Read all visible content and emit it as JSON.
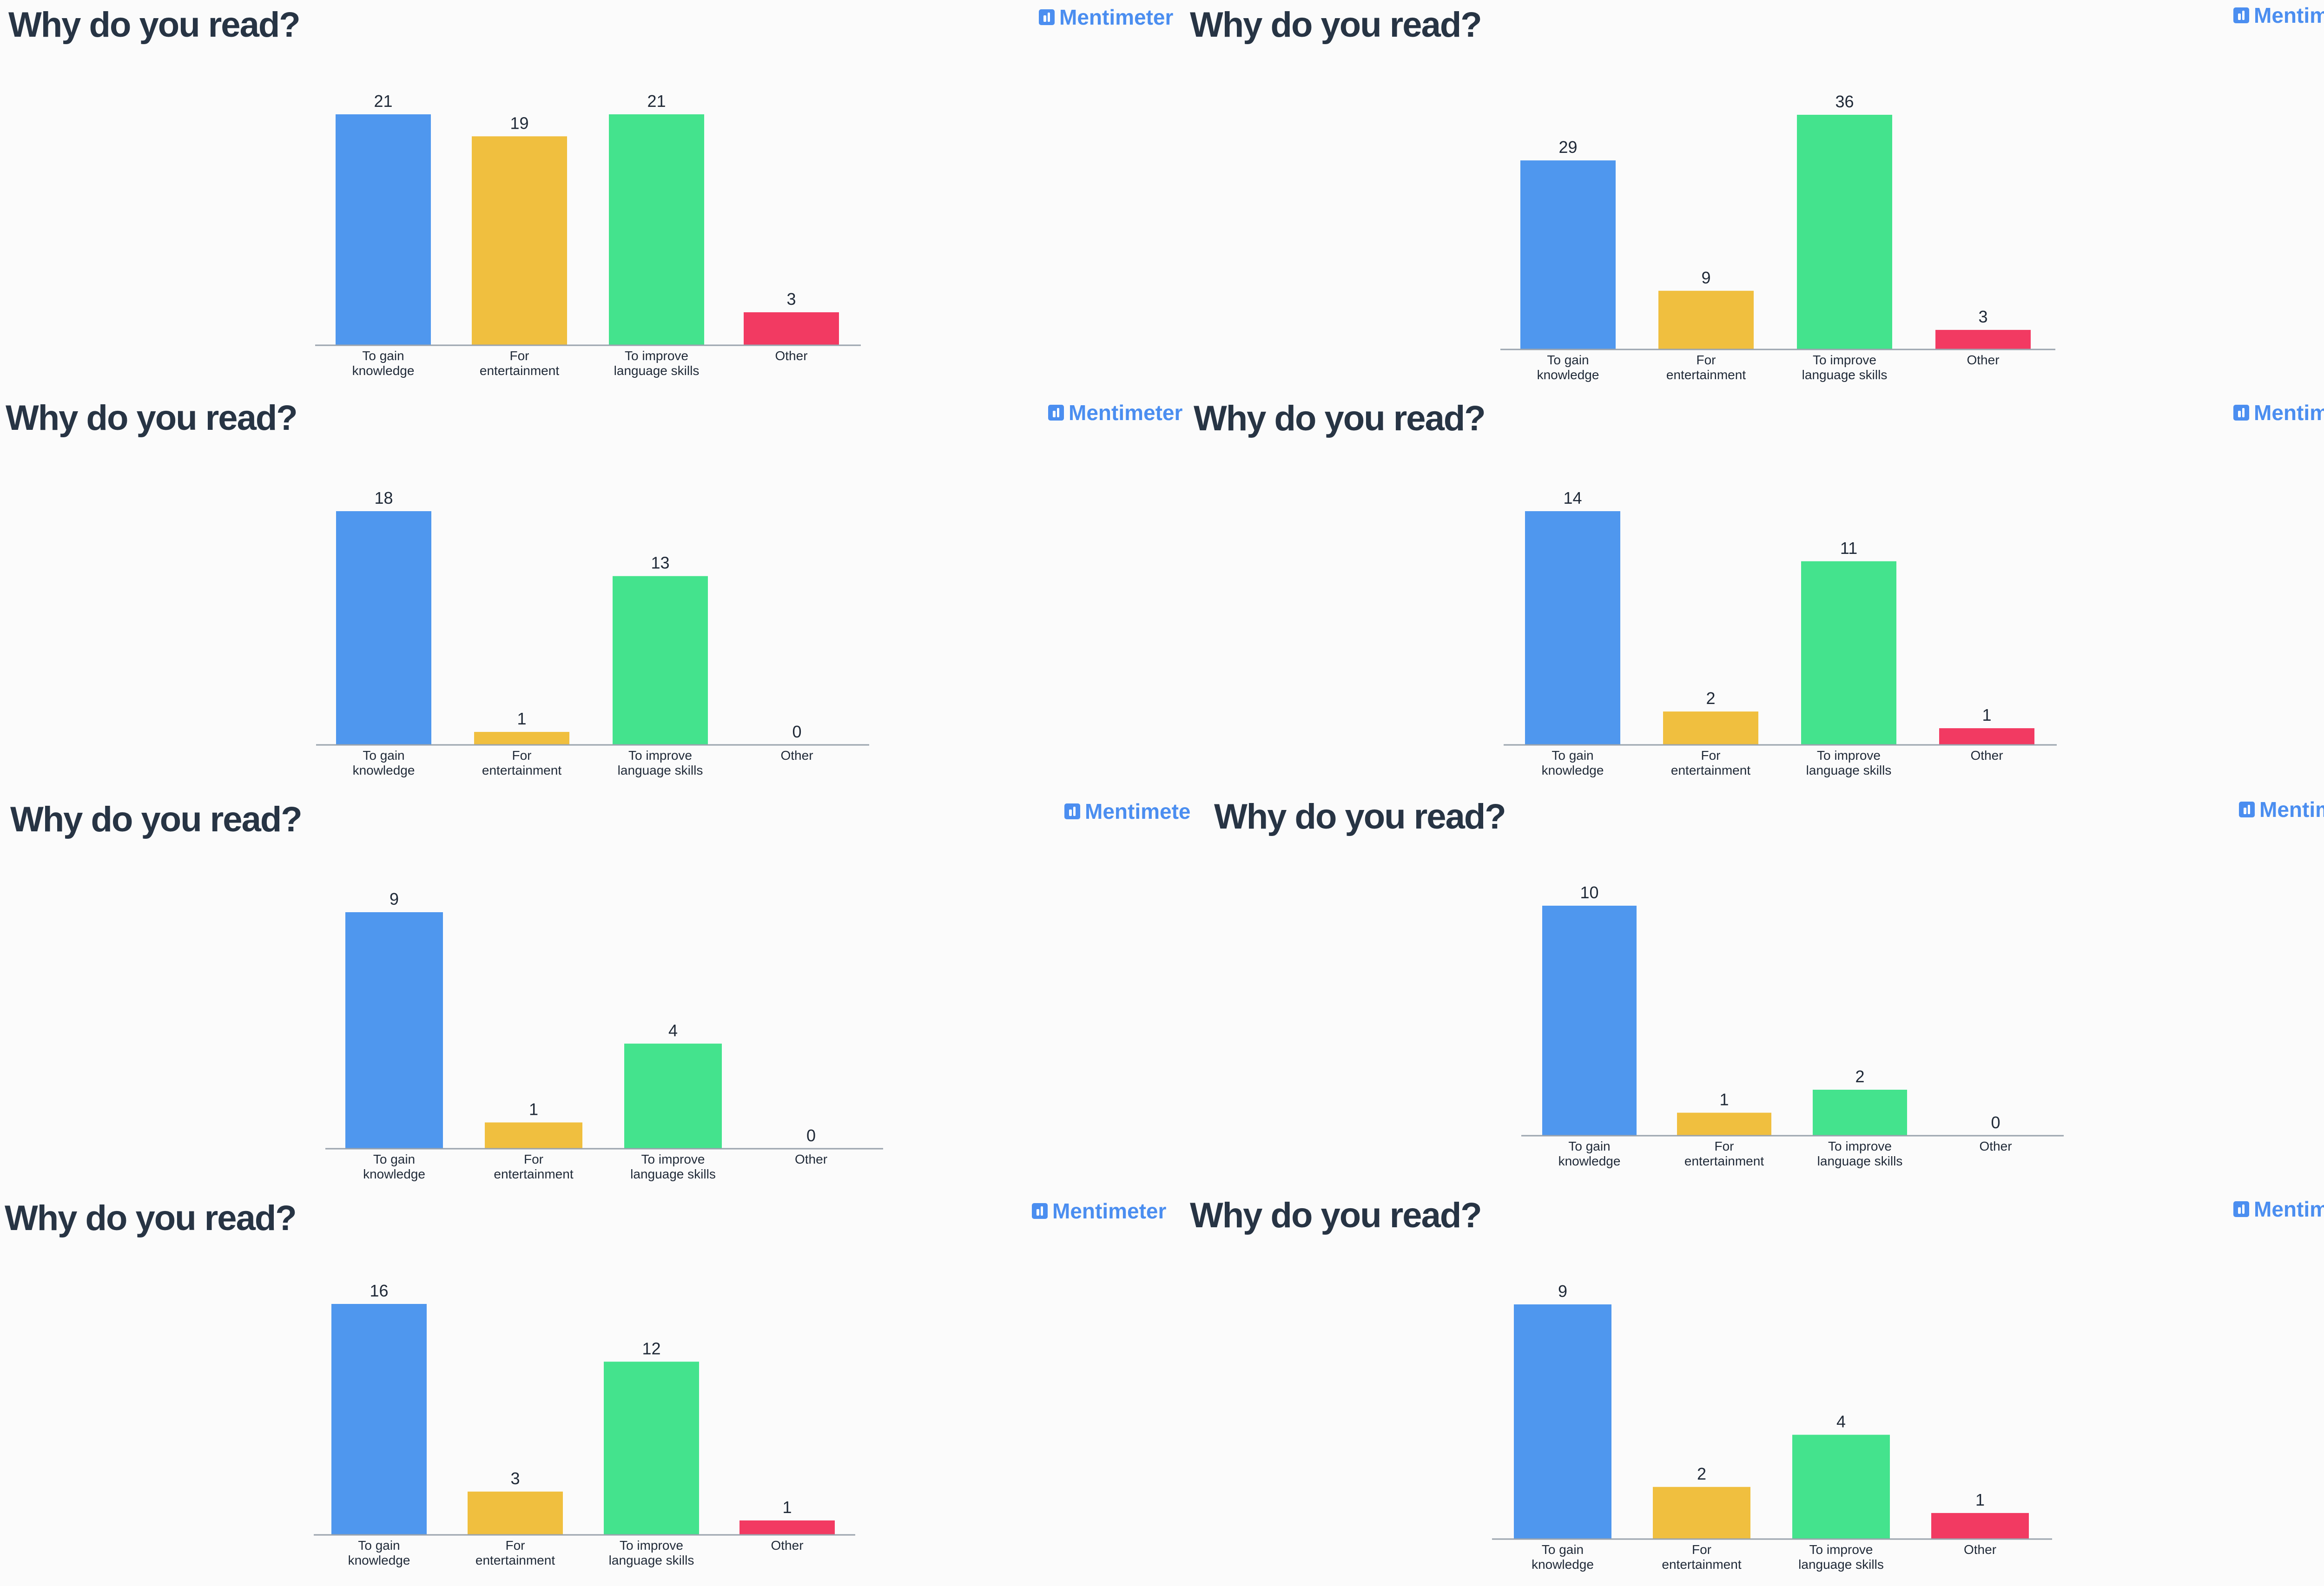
{
  "branding": {
    "name": "Mentimeter",
    "color": "#4b8ef0"
  },
  "colors": {
    "To gain knowledge": "#4f97ee",
    "For entertainment": "#f0bf3f",
    "To improve language skills": "#44e38d",
    "Other": "#f23a62"
  },
  "panels": [
    {
      "title": "Why do you read?",
      "brand": "Mentimeter"
    },
    {
      "title": "Why do you read?",
      "brand": "Mentimeter"
    },
    {
      "title": "Why do you read?",
      "brand": "Mentimeter"
    },
    {
      "title": "Why do you read?",
      "brand": "Mentimeter"
    },
    {
      "title": "Why do you read?",
      "brand": "Mentimeter"
    },
    {
      "title": "Why do you read?",
      "brand": "Mentimeter"
    },
    {
      "title": "Why do you read?",
      "brand": "Mentimeter"
    },
    {
      "title": "Why do you read?",
      "brand": "Mentimeter"
    }
  ],
  "chart_data": [
    {
      "type": "bar",
      "title": "Why do you read?",
      "categories": [
        "To gain knowledge",
        "For entertainment",
        "To improve language skills",
        "Other"
      ],
      "values": [
        21,
        19,
        21,
        3
      ],
      "ylim": [
        0,
        21
      ],
      "grid": false,
      "legend": "none"
    },
    {
      "type": "bar",
      "title": "Why do you read?",
      "categories": [
        "To gain knowledge",
        "For entertainment",
        "To improve language skills",
        "Other"
      ],
      "values": [
        29,
        9,
        36,
        3
      ],
      "ylim": [
        0,
        36
      ],
      "grid": false,
      "legend": "none"
    },
    {
      "type": "bar",
      "title": "Why do you read?",
      "categories": [
        "To gain knowledge",
        "For entertainment",
        "To improve language skills",
        "Other"
      ],
      "values": [
        18,
        1,
        13,
        0
      ],
      "ylim": [
        0,
        18
      ],
      "grid": false,
      "legend": "none"
    },
    {
      "type": "bar",
      "title": "Why do you read?",
      "categories": [
        "To gain knowledge",
        "For entertainment",
        "To improve language skills",
        "Other"
      ],
      "values": [
        14,
        2,
        11,
        1
      ],
      "ylim": [
        0,
        14
      ],
      "grid": false,
      "legend": "none"
    },
    {
      "type": "bar",
      "title": "Why do you read?",
      "categories": [
        "To gain knowledge",
        "For entertainment",
        "To improve language skills",
        "Other"
      ],
      "values": [
        9,
        1,
        4,
        0
      ],
      "ylim": [
        0,
        9
      ],
      "grid": false,
      "legend": "none"
    },
    {
      "type": "bar",
      "title": "Why do you read?",
      "categories": [
        "To gain knowledge",
        "For entertainment",
        "To improve language skills",
        "Other"
      ],
      "values": [
        10,
        1,
        2,
        0
      ],
      "ylim": [
        0,
        10
      ],
      "grid": false,
      "legend": "none"
    },
    {
      "type": "bar",
      "title": "Why do you read?",
      "categories": [
        "To gain knowledge",
        "For entertainment",
        "To improve language skills",
        "Other"
      ],
      "values": [
        16,
        3,
        12,
        1
      ],
      "ylim": [
        0,
        16
      ],
      "grid": false,
      "legend": "none"
    },
    {
      "type": "bar",
      "title": "Why do you read?",
      "categories": [
        "To gain knowledge",
        "For entertainment",
        "To improve language skills",
        "Other"
      ],
      "values": [
        9,
        2,
        4,
        1
      ],
      "ylim": [
        0,
        9
      ],
      "grid": false,
      "legend": "none"
    }
  ]
}
